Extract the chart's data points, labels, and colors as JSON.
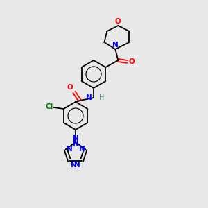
{
  "bg_color": "#e8e8e8",
  "bond_color": "#000000",
  "atom_colors": {
    "O": "#ff0000",
    "N": "#0000ff",
    "Cl": "#008000",
    "C": "#000000",
    "H": "#4e9090"
  },
  "lw": 1.3,
  "r_benz": 20,
  "r_triaz": 15
}
